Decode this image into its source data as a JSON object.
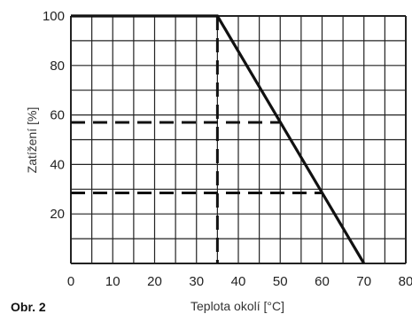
{
  "chart_data": {
    "type": "line",
    "caption": "Obr. 2",
    "xlabel": "Teplota okolí [°C]",
    "ylabel": "Zatížení [%]",
    "xlim": [
      0,
      80
    ],
    "ylim": [
      0,
      100
    ],
    "x_ticks": [
      "0",
      "10",
      "20",
      "30",
      "40",
      "50",
      "60",
      "70",
      "80"
    ],
    "y_ticks": [
      "20",
      "40",
      "60",
      "80",
      "100"
    ],
    "grid": true,
    "series": [
      {
        "x": [
          0,
          35,
          70
        ],
        "y": [
          100,
          100,
          0
        ]
      }
    ],
    "reference_lines": [
      {
        "x": [
          35,
          35
        ],
        "y": [
          100,
          0
        ]
      },
      {
        "x": [
          0,
          50
        ],
        "y": [
          57,
          57
        ]
      },
      {
        "x": [
          0,
          60
        ],
        "y": [
          28.5,
          28.5
        ]
      }
    ],
    "colors": {
      "line": "#111111",
      "grid": "#222222"
    }
  }
}
